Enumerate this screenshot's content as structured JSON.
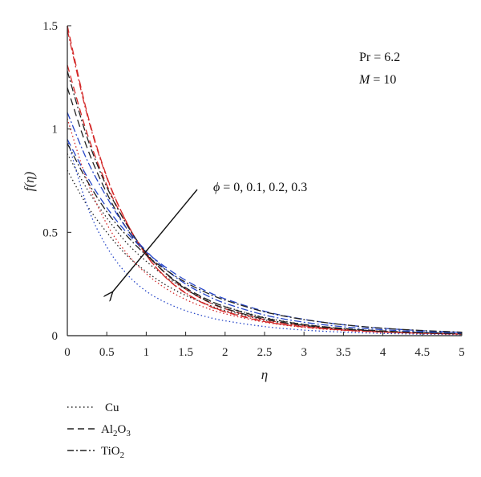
{
  "chart_data": {
    "type": "line",
    "xlabel": "η",
    "ylabel": "f(η)",
    "xlim": [
      0,
      5
    ],
    "ylim": [
      0,
      1.5
    ],
    "xticks": [
      "0",
      "0.5",
      "1",
      "1.5",
      "2",
      "2.5",
      "3",
      "3.5",
      "4",
      "4.5",
      "5"
    ],
    "yticks": [
      "0",
      "0.5",
      "1",
      "1.5"
    ],
    "grid": false,
    "annotations": {
      "params_line1": "Pr = 6.2",
      "params_line2_prefix": "M",
      "params_line2_suffix": " = 10",
      "arrow_label_symbol": "ϕ",
      "arrow_label_values": " = 0, 0.1, 0.2, 0.3"
    },
    "legend": {
      "placement": "bottom-left",
      "entries": [
        {
          "name": "Cu",
          "style": "dotted"
        },
        {
          "name": "Al2O3",
          "base1": "Al",
          "sub1": "2",
          "base2": "O",
          "sub2": "3",
          "style": "dashed"
        },
        {
          "name": "TiO2",
          "base1": "TiO",
          "sub1": "2",
          "style": "dashdot"
        }
      ]
    },
    "colors": {
      "black": "#222222",
      "red": "#d42a2a",
      "blue": "#2646c8"
    },
    "x": [
      0,
      0.25,
      0.5,
      0.75,
      1,
      1.25,
      1.5,
      1.75,
      2,
      2.5,
      3,
      3.5,
      4,
      4.5,
      5
    ],
    "series": [
      {
        "nanofluid": "Cu",
        "phi": 0,
        "color": "black",
        "style": "dotted",
        "values": [
          0.8,
          0.63,
          0.5,
          0.39,
          0.31,
          0.245,
          0.195,
          0.155,
          0.122,
          0.076,
          0.048,
          0.03,
          0.019,
          0.012,
          0.007
        ]
      },
      {
        "nanofluid": "Cu",
        "phi": 0.1,
        "color": "black",
        "style": "dotted",
        "values": [
          0.88,
          0.71,
          0.57,
          0.45,
          0.36,
          0.285,
          0.225,
          0.178,
          0.141,
          0.088,
          0.055,
          0.034,
          0.021,
          0.013,
          0.008
        ]
      },
      {
        "nanofluid": "Cu",
        "phi": 0.2,
        "color": "blue",
        "style": "dotted",
        "values": [
          0.95,
          0.63,
          0.43,
          0.3,
          0.215,
          0.16,
          0.121,
          0.093,
          0.072,
          0.044,
          0.027,
          0.017,
          0.011,
          0.007,
          0.005
        ]
      },
      {
        "nanofluid": "Cu",
        "phi": 0.3,
        "color": "red",
        "style": "dotted",
        "values": [
          1.05,
          0.75,
          0.54,
          0.4,
          0.3,
          0.228,
          0.175,
          0.136,
          0.106,
          0.065,
          0.04,
          0.025,
          0.016,
          0.01,
          0.006
        ]
      },
      {
        "nanofluid": "Al2O3",
        "phi": 0,
        "color": "red",
        "style": "dashed",
        "values": [
          1.5,
          1.08,
          0.77,
          0.55,
          0.39,
          0.28,
          0.205,
          0.152,
          0.115,
          0.068,
          0.042,
          0.027,
          0.018,
          0.012,
          0.008
        ]
      },
      {
        "nanofluid": "Al2O3",
        "phi": 0.1,
        "color": "red",
        "style": "dashed",
        "values": [
          1.31,
          0.98,
          0.73,
          0.54,
          0.4,
          0.3,
          0.225,
          0.17,
          0.13,
          0.078,
          0.048,
          0.031,
          0.02,
          0.013,
          0.009
        ]
      },
      {
        "nanofluid": "Al2O3",
        "phi": 0.2,
        "color": "black",
        "style": "dashed",
        "values": [
          1.2,
          0.91,
          0.69,
          0.52,
          0.395,
          0.302,
          0.232,
          0.18,
          0.14,
          0.086,
          0.054,
          0.035,
          0.023,
          0.015,
          0.01
        ]
      },
      {
        "nanofluid": "Al2O3",
        "phi": 0.3,
        "color": "blue",
        "style": "dashed",
        "values": [
          0.95,
          0.77,
          0.62,
          0.5,
          0.405,
          0.33,
          0.268,
          0.218,
          0.178,
          0.118,
          0.079,
          0.053,
          0.036,
          0.024,
          0.016
        ]
      },
      {
        "nanofluid": "TiO2",
        "phi": 0,
        "color": "red",
        "style": "dashdot",
        "values": [
          1.48,
          1.07,
          0.765,
          0.55,
          0.39,
          0.282,
          0.207,
          0.154,
          0.117,
          0.07,
          0.043,
          0.028,
          0.018,
          0.012,
          0.008
        ]
      },
      {
        "nanofluid": "TiO2",
        "phi": 0.1,
        "color": "black",
        "style": "dashdot",
        "values": [
          1.28,
          0.96,
          0.72,
          0.54,
          0.4,
          0.3,
          0.226,
          0.172,
          0.132,
          0.08,
          0.05,
          0.032,
          0.021,
          0.014,
          0.009
        ]
      },
      {
        "nanofluid": "TiO2",
        "phi": 0.2,
        "color": "blue",
        "style": "dashdot",
        "values": [
          1.08,
          0.85,
          0.67,
          0.52,
          0.41,
          0.32,
          0.25,
          0.198,
          0.157,
          0.1,
          0.065,
          0.043,
          0.029,
          0.019,
          0.013
        ]
      },
      {
        "nanofluid": "TiO2",
        "phi": 0.3,
        "color": "black",
        "style": "dashdot",
        "values": [
          0.93,
          0.75,
          0.6,
          0.485,
          0.39,
          0.318,
          0.258,
          0.21,
          0.172,
          0.115,
          0.078,
          0.053,
          0.036,
          0.025,
          0.017
        ]
      }
    ]
  }
}
